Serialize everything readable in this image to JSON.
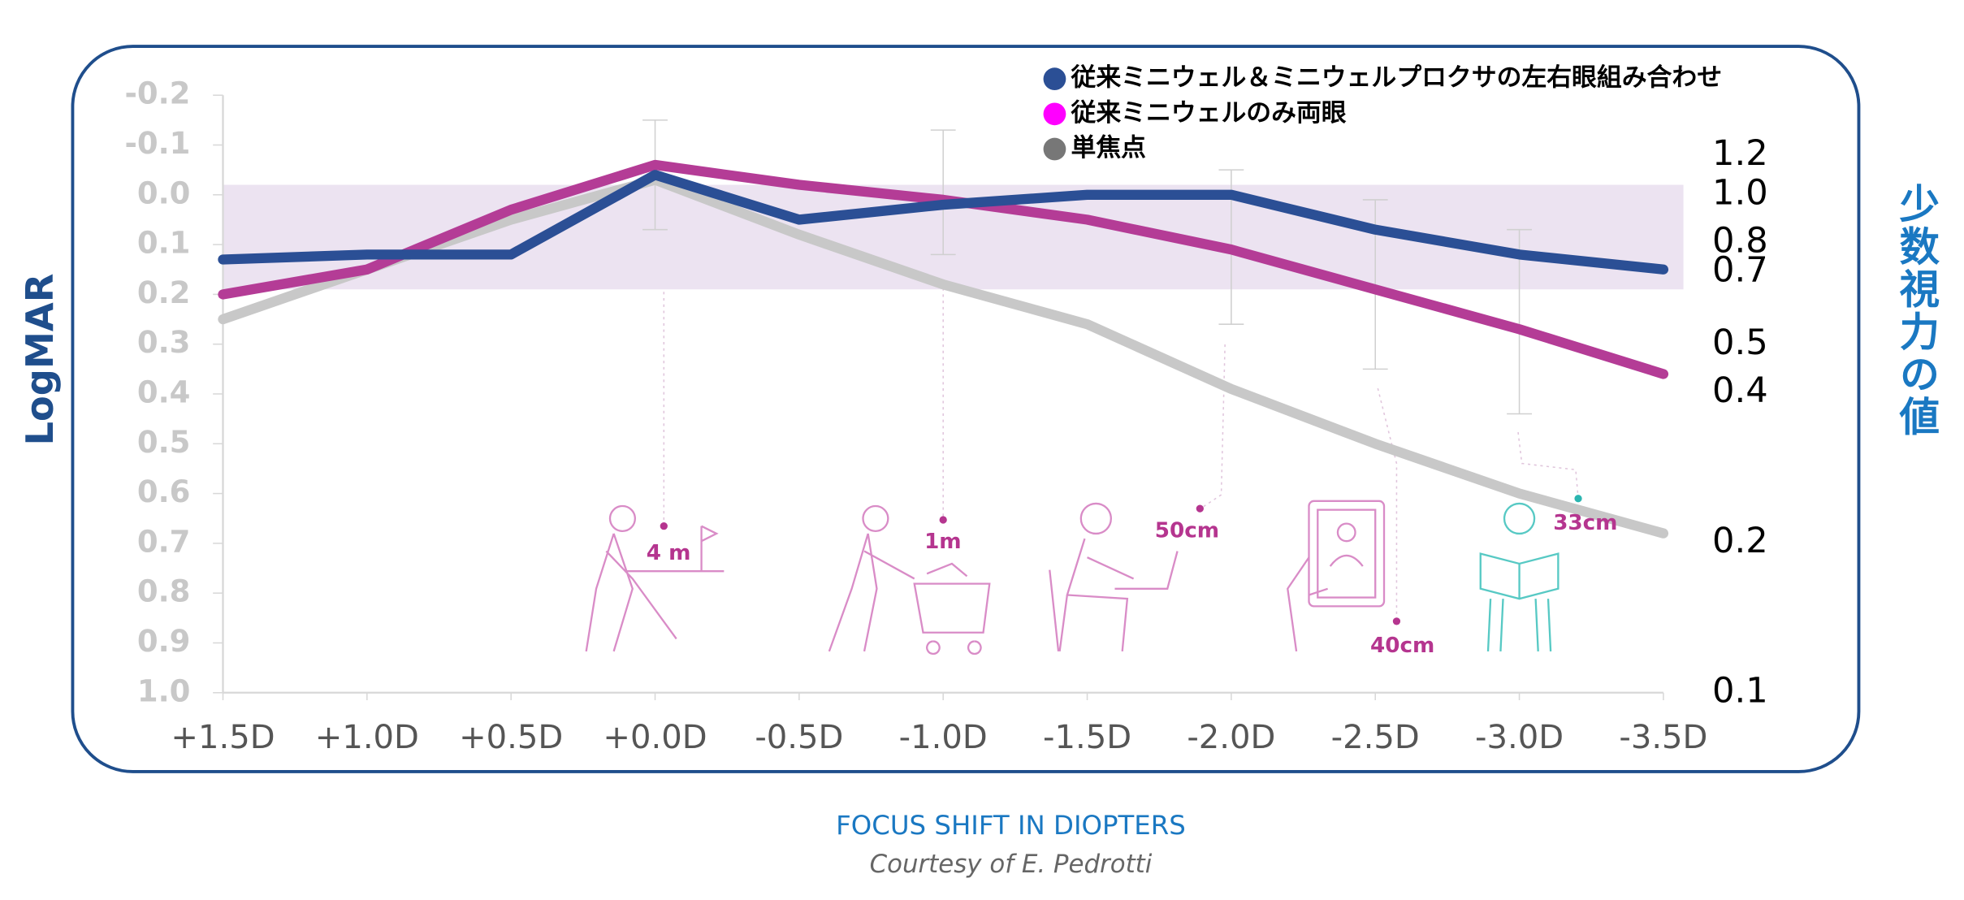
{
  "chart_data": {
    "type": "line",
    "y_label": "LogMAR",
    "y2_label": "少数視力の値",
    "x_label": "FOCUS SHIFT IN DIOPTERS",
    "footer": "Courtesy of E. Pedrotti",
    "categories": [
      "+1.5D",
      "+1.0D",
      "+0.5D",
      "+0.0D",
      "-0.5D",
      "-1.0D",
      "-1.5D",
      "-2.0D",
      "-2.5D",
      "-3.0D",
      "-3.5D"
    ],
    "series": [
      {
        "name": "単焦点",
        "color": "#c8c8c8",
        "legend_color": "#777777",
        "values": [
          0.25,
          0.15,
          0.05,
          -0.03,
          0.08,
          0.18,
          0.26,
          0.39,
          0.5,
          0.6,
          0.68
        ]
      },
      {
        "name": "従来ミニウェルのみ両眼",
        "color": "#b43c96",
        "legend_color": "#ff00ff",
        "values": [
          0.2,
          0.15,
          0.03,
          -0.06,
          -0.02,
          0.01,
          0.05,
          0.11,
          0.19,
          0.27,
          0.36
        ]
      },
      {
        "name": "従来ミニウェル＆ミニウェルプロクサの左右眼組み合わせ",
        "color": "#2b4f95",
        "legend_color": "#2b4f95",
        "values": [
          0.13,
          0.12,
          0.12,
          -0.04,
          0.05,
          0.02,
          0.0,
          0.0,
          0.07,
          0.12,
          0.15
        ]
      }
    ],
    "legend_order": [
      2,
      1,
      0
    ],
    "error_bars": {
      "categories": [
        "+0.0D",
        "-1.0D",
        "-2.0D",
        "-2.5D",
        "-3.0D"
      ],
      "low": [
        -0.15,
        -0.13,
        -0.05,
        0.01,
        0.07
      ],
      "high": [
        0.07,
        0.12,
        0.26,
        0.35,
        0.44
      ],
      "color": "#d0d0d0"
    },
    "band": [
      -0.02,
      0.19
    ],
    "band_color": "#ece3f1",
    "ylim": [
      -0.2,
      1.0
    ],
    "yticks": [
      -0.2,
      -0.1,
      {
        "value": 0,
        "label": "0.0"
      },
      0.1,
      0.2,
      0.3,
      0.4,
      0.5,
      0.6,
      0.7,
      0.8,
      0.9,
      {
        "value": 1,
        "label": "1.0"
      }
    ],
    "y_inverted": true,
    "y2lim": [
      1.585,
      0.1
    ],
    "y2_log": true,
    "y2ticks": [
      1.2,
      {
        "value": 1,
        "label": "1.0"
      },
      0.8,
      0.7,
      0.5,
      0.4,
      0.2,
      0.1
    ],
    "annotations": [
      {
        "text": "4 m"
      },
      {
        "text": "1m"
      },
      {
        "text": "50cm"
      },
      {
        "text": "40cm"
      },
      {
        "text": "33cm"
      }
    ]
  }
}
